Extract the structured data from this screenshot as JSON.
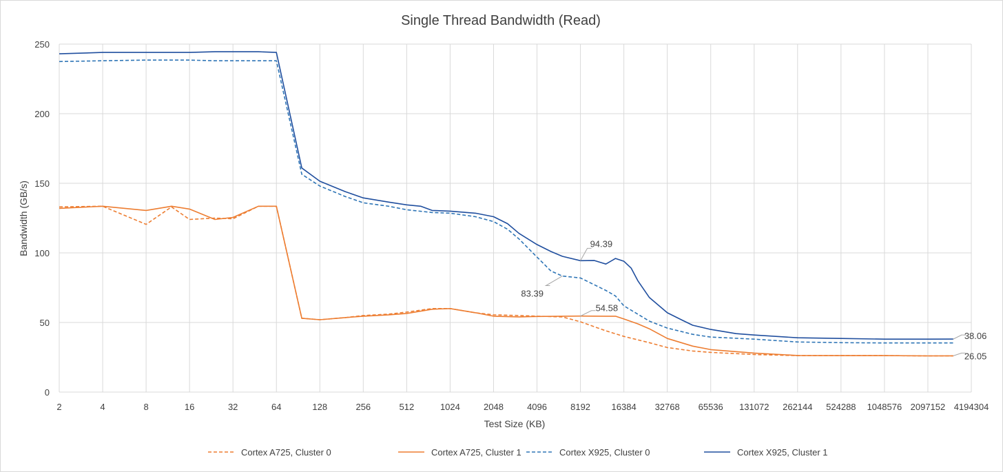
{
  "chart_data": {
    "type": "line",
    "title": "Single Thread Bandwidth (Read)",
    "xlabel": "Test Size (KB)",
    "ylabel": "Bandwidth (GB/s)",
    "x_scale": "log2",
    "ylim": [
      0,
      250
    ],
    "y_ticks": [
      "0",
      "50",
      "100",
      "150",
      "200",
      "250"
    ],
    "x_ticks": [
      "2",
      "4",
      "8",
      "16",
      "32",
      "64",
      "128",
      "256",
      "512",
      "1024",
      "2048",
      "4096",
      "8192",
      "16384",
      "32768",
      "65536",
      "131072",
      "262144",
      "524288",
      "1048576",
      "2097152",
      "4194304"
    ],
    "grid": true,
    "legend_position": "bottom",
    "series": [
      {
        "name": "Cortex A725, Cluster  0",
        "color": "#ED7D31",
        "dash": true,
        "points": [
          [
            2,
            133
          ],
          [
            4,
            133.5
          ],
          [
            8,
            120.5
          ],
          [
            12,
            133
          ],
          [
            16,
            124
          ],
          [
            24,
            125
          ],
          [
            32,
            124.5
          ],
          [
            48,
            133.5
          ],
          [
            64,
            133.5
          ],
          [
            96,
            53
          ],
          [
            128,
            52
          ],
          [
            192,
            53.5
          ],
          [
            256,
            55
          ],
          [
            384,
            56
          ],
          [
            512,
            57.5
          ],
          [
            768,
            60
          ],
          [
            1024,
            60
          ],
          [
            1536,
            57
          ],
          [
            2048,
            55.5
          ],
          [
            3072,
            55
          ],
          [
            4096,
            54.5
          ],
          [
            6144,
            54
          ],
          [
            8192,
            50.5
          ],
          [
            12288,
            44
          ],
          [
            16384,
            40
          ],
          [
            24576,
            35.5
          ],
          [
            32768,
            32
          ],
          [
            49152,
            29.5
          ],
          [
            65536,
            28.5
          ],
          [
            131072,
            27
          ],
          [
            262144,
            26.2
          ],
          [
            524288,
            26.2
          ],
          [
            1048576,
            26.2
          ],
          [
            2097152,
            26
          ],
          [
            3145728,
            26
          ]
        ]
      },
      {
        "name": "Cortex A725, Cluster 1",
        "color": "#ED7D31",
        "dash": false,
        "points": [
          [
            2,
            132
          ],
          [
            4,
            133.5
          ],
          [
            8,
            130.5
          ],
          [
            12,
            133.5
          ],
          [
            16,
            131.5
          ],
          [
            24,
            124
          ],
          [
            32,
            125.5
          ],
          [
            48,
            133.5
          ],
          [
            64,
            133.5
          ],
          [
            96,
            53
          ],
          [
            128,
            52
          ],
          [
            192,
            53.5
          ],
          [
            256,
            54.5
          ],
          [
            384,
            55.5
          ],
          [
            512,
            56.5
          ],
          [
            768,
            59.5
          ],
          [
            1024,
            60
          ],
          [
            1536,
            57
          ],
          [
            2048,
            54.5
          ],
          [
            3072,
            54
          ],
          [
            4096,
            54.3
          ],
          [
            6144,
            54.5
          ],
          [
            8192,
            54.58
          ],
          [
            12288,
            54.5
          ],
          [
            14336,
            54.5
          ],
          [
            16384,
            52.5
          ],
          [
            20480,
            49
          ],
          [
            24576,
            45.5
          ],
          [
            32768,
            38.5
          ],
          [
            49152,
            33
          ],
          [
            65536,
            30.5
          ],
          [
            131072,
            28
          ],
          [
            262144,
            26.3
          ],
          [
            524288,
            26.2
          ],
          [
            1048576,
            26.2
          ],
          [
            2097152,
            26
          ],
          [
            3145728,
            26.05
          ]
        ]
      },
      {
        "name": "Cortex X925, Cluster 0",
        "color": "#2E75B6",
        "dash": true,
        "points": [
          [
            2,
            237.5
          ],
          [
            4,
            238
          ],
          [
            8,
            238.5
          ],
          [
            16,
            238.5
          ],
          [
            24,
            238
          ],
          [
            32,
            238
          ],
          [
            48,
            238
          ],
          [
            64,
            238
          ],
          [
            96,
            156.5
          ],
          [
            128,
            148
          ],
          [
            192,
            140.5
          ],
          [
            256,
            136
          ],
          [
            384,
            133.5
          ],
          [
            512,
            131
          ],
          [
            768,
            129
          ],
          [
            1024,
            128.5
          ],
          [
            1536,
            126
          ],
          [
            2048,
            122.5
          ],
          [
            2560,
            117
          ],
          [
            3072,
            110
          ],
          [
            4096,
            97
          ],
          [
            5120,
            87
          ],
          [
            6144,
            83.39
          ],
          [
            8192,
            82
          ],
          [
            12288,
            73
          ],
          [
            14336,
            69
          ],
          [
            16384,
            62
          ],
          [
            24576,
            51
          ],
          [
            32768,
            46
          ],
          [
            49152,
            41.5
          ],
          [
            65536,
            39.5
          ],
          [
            131072,
            38
          ],
          [
            262144,
            36
          ],
          [
            524288,
            35.5
          ],
          [
            1048576,
            35.3
          ],
          [
            2097152,
            35.3
          ],
          [
            3145728,
            35.3
          ]
        ]
      },
      {
        "name": "Cortex X925, Cluster 1",
        "color": "#1F4E9E",
        "dash": false,
        "points": [
          [
            2,
            243
          ],
          [
            4,
            244
          ],
          [
            8,
            244
          ],
          [
            16,
            244
          ],
          [
            24,
            244.5
          ],
          [
            32,
            244.5
          ],
          [
            48,
            244.5
          ],
          [
            64,
            244
          ],
          [
            96,
            161
          ],
          [
            128,
            151.5
          ],
          [
            192,
            144
          ],
          [
            256,
            139.5
          ],
          [
            384,
            136.5
          ],
          [
            512,
            134.5
          ],
          [
            640,
            133.5
          ],
          [
            768,
            130.5
          ],
          [
            1024,
            130
          ],
          [
            1536,
            128.5
          ],
          [
            2048,
            126
          ],
          [
            2560,
            121
          ],
          [
            3072,
            114
          ],
          [
            4096,
            106
          ],
          [
            5120,
            101
          ],
          [
            6144,
            97.5
          ],
          [
            8192,
            94.39
          ],
          [
            10240,
            94.5
          ],
          [
            12288,
            92
          ],
          [
            14336,
            96
          ],
          [
            16384,
            94
          ],
          [
            18432,
            89
          ],
          [
            20480,
            80
          ],
          [
            24576,
            68
          ],
          [
            32768,
            57
          ],
          [
            40960,
            52
          ],
          [
            49152,
            48
          ],
          [
            65536,
            45
          ],
          [
            98304,
            42
          ],
          [
            131072,
            41
          ],
          [
            262144,
            39
          ],
          [
            524288,
            38.5
          ],
          [
            1048576,
            38
          ],
          [
            2097152,
            38
          ],
          [
            3145728,
            38.06
          ]
        ]
      }
    ],
    "annotations": [
      {
        "label": "94.39",
        "x": 8192,
        "y": 94.39
      },
      {
        "label": "83.39",
        "x": 6144,
        "y": 83.39
      },
      {
        "label": "54.58",
        "x": 8192,
        "y": 54.58
      },
      {
        "label": "38.06",
        "x": 3145728,
        "y": 38.06
      },
      {
        "label": "26.05",
        "x": 3145728,
        "y": 26.05
      }
    ]
  }
}
